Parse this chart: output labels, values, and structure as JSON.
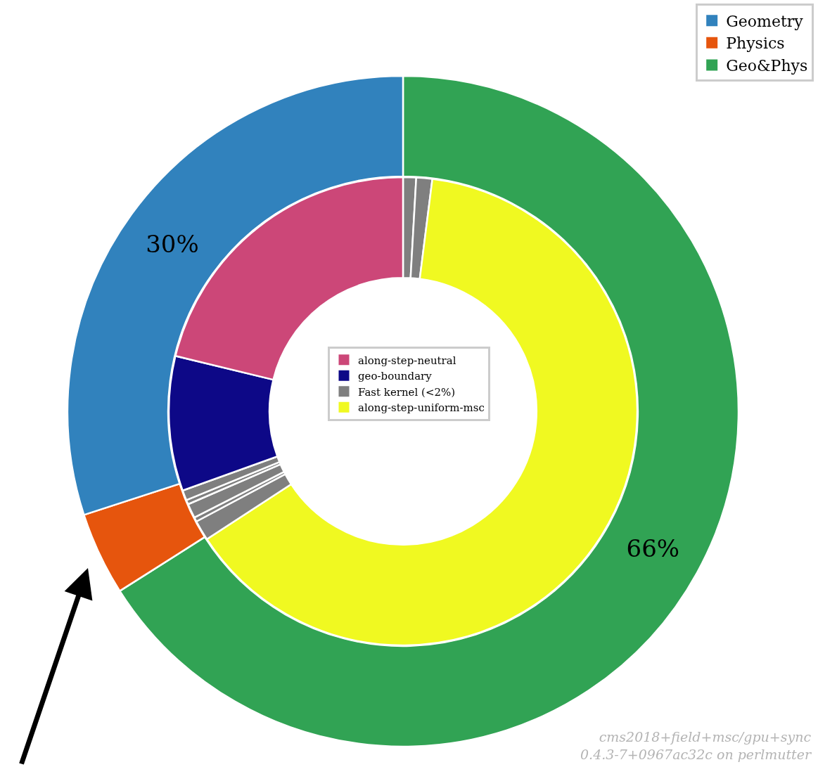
{
  "chart_data": [
    {
      "type": "donut",
      "categories": [
        "Geometry",
        "Physics",
        "Geo&Phys"
      ],
      "values": [
        30,
        4,
        66
      ],
      "colors": [
        "#3182bd",
        "#e6550d",
        "#31a354"
      ],
      "value_labels": [
        "30%",
        null,
        "66%"
      ],
      "legend": "top right",
      "annotations": [
        "cms2018+field+msc/gpu+sync",
        "0.4.3-7+0967ac32c on perlmutter"
      ]
    },
    {
      "type": "donut",
      "categories": [
        "along-step-neutral",
        "geo-boundary",
        "Fast kernel (<2%)",
        null,
        null,
        null,
        null,
        "along-step-uniform-msc",
        null,
        null
      ],
      "values": [
        21.2,
        9.3,
        0.7,
        0.3,
        1.0,
        0.3,
        1.4,
        63.8,
        1.1,
        0.9
      ],
      "colors": [
        "#cc4778",
        "#0d0887",
        "#7f7f7f",
        "#7f7f7f",
        "#7f7f7f",
        "#7f7f7f",
        "#7f7f7f",
        "#f0f921",
        "#7f7f7f",
        "#7f7f7f"
      ],
      "legend": "center"
    }
  ]
}
